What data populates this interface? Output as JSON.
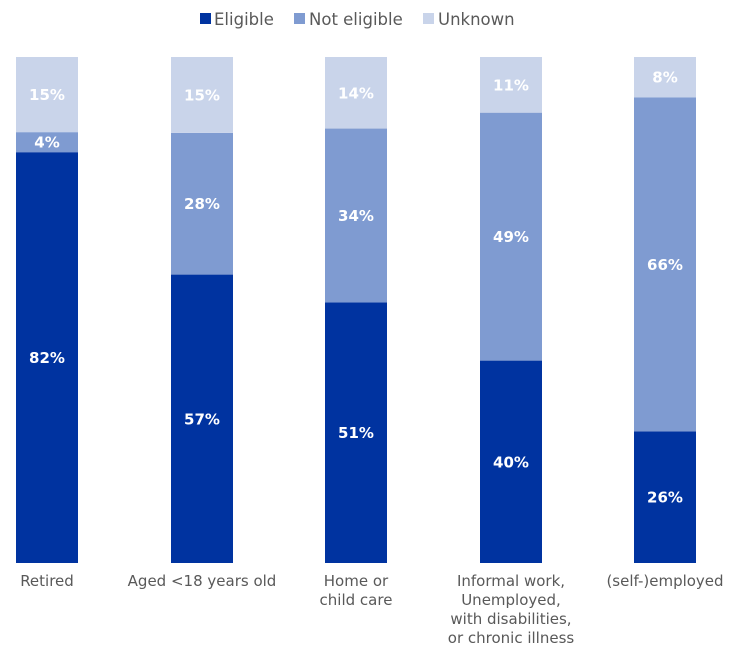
{
  "chart_data": {
    "type": "bar",
    "stacked": true,
    "percent": true,
    "categories": [
      [
        "Retired"
      ],
      [
        "Aged <18 years old"
      ],
      [
        "Home or",
        "child care"
      ],
      [
        "Informal work,",
        "Unemployed,",
        "with disabilities,",
        "or chronic illness"
      ],
      [
        "(self-)employed"
      ]
    ],
    "series": [
      {
        "name": "Eligible",
        "color": "#0033a0",
        "values": [
          82,
          57,
          51,
          40,
          26
        ]
      },
      {
        "name": "Not eligible",
        "color": "#7f9bd1",
        "values": [
          4,
          28,
          34,
          49,
          66
        ]
      },
      {
        "name": "Unknown",
        "color": "#c9d4ea",
        "values": [
          15,
          15,
          14,
          11,
          8
        ]
      }
    ],
    "ylim": [
      0,
      100
    ],
    "grid": false,
    "legend": "top-center",
    "value_suffix": "%"
  }
}
